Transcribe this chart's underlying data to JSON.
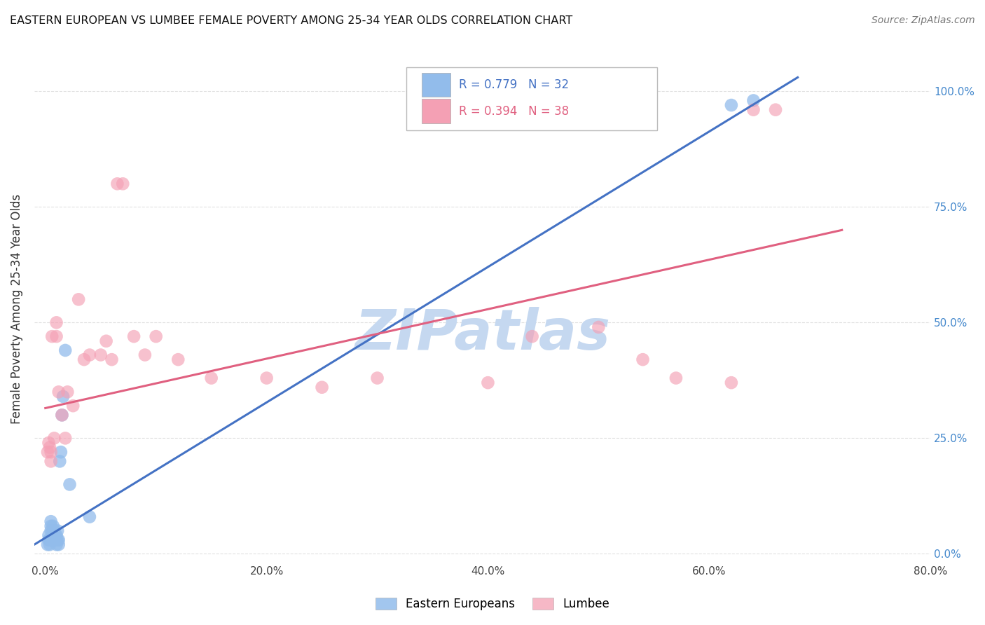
{
  "title": "EASTERN EUROPEAN VS LUMBEE FEMALE POVERTY AMONG 25-34 YEAR OLDS CORRELATION CHART",
  "source": "Source: ZipAtlas.com",
  "ylabel": "Female Poverty Among 25-34 Year Olds",
  "xlabel_ticks": [
    "0.0%",
    "20.0%",
    "40.0%",
    "60.0%",
    "80.0%"
  ],
  "ytick_labels": [
    "100.0%",
    "75.0%",
    "50.0%",
    "25.0%",
    "0.0%"
  ],
  "blue_R": 0.779,
  "blue_N": 32,
  "pink_R": 0.394,
  "pink_N": 38,
  "blue_color": "#92BCEB",
  "pink_color": "#F4A0B4",
  "blue_line_color": "#4472C4",
  "pink_line_color": "#E06080",
  "watermark_color": "#C5D8F0",
  "background_color": "#FFFFFF",
  "grid_color": "#E0E0E0",
  "blue_scatter_x": [
    0.002,
    0.003,
    0.003,
    0.004,
    0.004,
    0.005,
    0.005,
    0.005,
    0.006,
    0.006,
    0.007,
    0.007,
    0.008,
    0.008,
    0.009,
    0.009,
    0.01,
    0.01,
    0.01,
    0.011,
    0.011,
    0.012,
    0.012,
    0.013,
    0.014,
    0.015,
    0.016,
    0.018,
    0.022,
    0.04,
    0.62,
    0.64
  ],
  "blue_scatter_y": [
    0.02,
    0.03,
    0.04,
    0.02,
    0.03,
    0.05,
    0.06,
    0.07,
    0.03,
    0.04,
    0.05,
    0.06,
    0.04,
    0.05,
    0.03,
    0.04,
    0.02,
    0.03,
    0.04,
    0.05,
    0.03,
    0.02,
    0.03,
    0.2,
    0.22,
    0.3,
    0.34,
    0.44,
    0.15,
    0.08,
    0.97,
    0.98
  ],
  "pink_scatter_x": [
    0.002,
    0.003,
    0.004,
    0.005,
    0.005,
    0.006,
    0.008,
    0.01,
    0.01,
    0.012,
    0.015,
    0.018,
    0.02,
    0.025,
    0.03,
    0.035,
    0.04,
    0.05,
    0.055,
    0.06,
    0.065,
    0.07,
    0.08,
    0.09,
    0.1,
    0.12,
    0.15,
    0.2,
    0.25,
    0.3,
    0.4,
    0.44,
    0.5,
    0.54,
    0.57,
    0.62,
    0.64,
    0.66
  ],
  "pink_scatter_y": [
    0.22,
    0.24,
    0.23,
    0.2,
    0.22,
    0.47,
    0.25,
    0.47,
    0.5,
    0.35,
    0.3,
    0.25,
    0.35,
    0.32,
    0.55,
    0.42,
    0.43,
    0.43,
    0.46,
    0.42,
    0.8,
    0.8,
    0.47,
    0.43,
    0.47,
    0.42,
    0.38,
    0.38,
    0.36,
    0.38,
    0.37,
    0.47,
    0.49,
    0.42,
    0.38,
    0.37,
    0.96,
    0.96
  ],
  "blue_trendline_x": [
    -0.01,
    0.68
  ],
  "blue_trendline_y": [
    0.02,
    1.03
  ],
  "pink_trendline_x": [
    0.0,
    0.72
  ],
  "pink_trendline_y": [
    0.315,
    0.7
  ],
  "xlim": [
    -0.01,
    0.72
  ],
  "ylim": [
    -0.02,
    1.08
  ],
  "xtick_vals": [
    0.0,
    0.2,
    0.4,
    0.6,
    0.8
  ],
  "ytick_vals": [
    0.0,
    0.25,
    0.5,
    0.75,
    1.0
  ]
}
